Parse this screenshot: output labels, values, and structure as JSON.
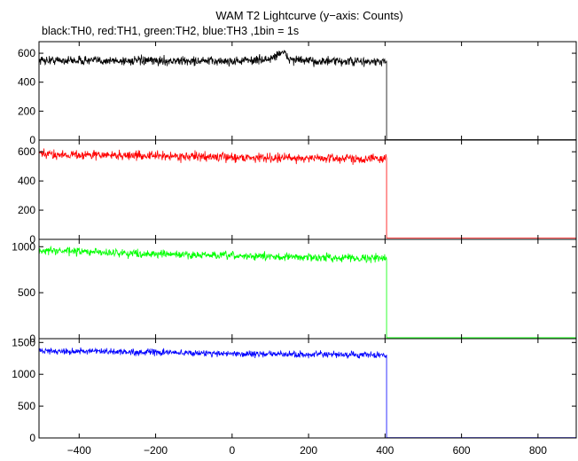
{
  "chart_data": {
    "type": "line",
    "title": "WAM T2 Lightcurve (y−axis: Counts)",
    "subtitle": "black:TH0, red:TH1, green:TH2, blue:TH3 ,1bin = 1s",
    "x_range": [
      -505,
      900
    ],
    "x_ticks": [
      -400,
      -200,
      0,
      200,
      400,
      600,
      800
    ],
    "x_tick_labels": [
      "−400",
      "−200",
      "0",
      "200",
      "400",
      "600",
      "800"
    ],
    "panels": [
      {
        "name": "TH0",
        "color": "#000000",
        "ylim": [
          0,
          680
        ],
        "yticks": [
          0,
          200,
          400,
          600
        ],
        "ytick_labels": [
          "0",
          "200",
          "400",
          "600"
        ],
        "segments": [
          [
            -505,
            552
          ],
          [
            -300,
            548
          ],
          [
            0,
            545
          ],
          [
            100,
            558
          ],
          [
            130,
            612
          ],
          [
            150,
            560
          ],
          [
            200,
            545
          ],
          [
            400,
            540
          ]
        ],
        "noise": 22,
        "drop_x": 404,
        "post_value": 3
      },
      {
        "name": "TH1",
        "color": "#ff0000",
        "ylim": [
          0,
          680
        ],
        "yticks": [
          0,
          200,
          400,
          600
        ],
        "ytick_labels": [
          "0",
          "200",
          "400",
          "600"
        ],
        "segments": [
          [
            -505,
            583
          ],
          [
            -200,
            572
          ],
          [
            0,
            562
          ],
          [
            200,
            556
          ],
          [
            400,
            552
          ]
        ],
        "noise": 22,
        "drop_x": 404,
        "post_value": 10
      },
      {
        "name": "TH2",
        "color": "#00ff00",
        "ylim": [
          0,
          1080
        ],
        "yticks": [
          0,
          500,
          1000
        ],
        "ytick_labels": [
          "0",
          "500",
          "1000"
        ],
        "segments": [
          [
            -505,
            960
          ],
          [
            -200,
            920
          ],
          [
            0,
            900
          ],
          [
            200,
            885
          ],
          [
            400,
            875
          ]
        ],
        "noise": 30,
        "drop_x": 404,
        "post_value": 10
      },
      {
        "name": "TH3",
        "color": "#0000ff",
        "ylim": [
          0,
          1560
        ],
        "yticks": [
          0,
          500,
          1000,
          1500
        ],
        "ytick_labels": [
          "0",
          "500",
          "1000",
          "1500"
        ],
        "segments": [
          [
            -505,
            1370
          ],
          [
            -200,
            1345
          ],
          [
            0,
            1325
          ],
          [
            200,
            1310
          ],
          [
            400,
            1300
          ]
        ],
        "noise": 35,
        "drop_x": 404,
        "post_value": 5
      }
    ]
  }
}
